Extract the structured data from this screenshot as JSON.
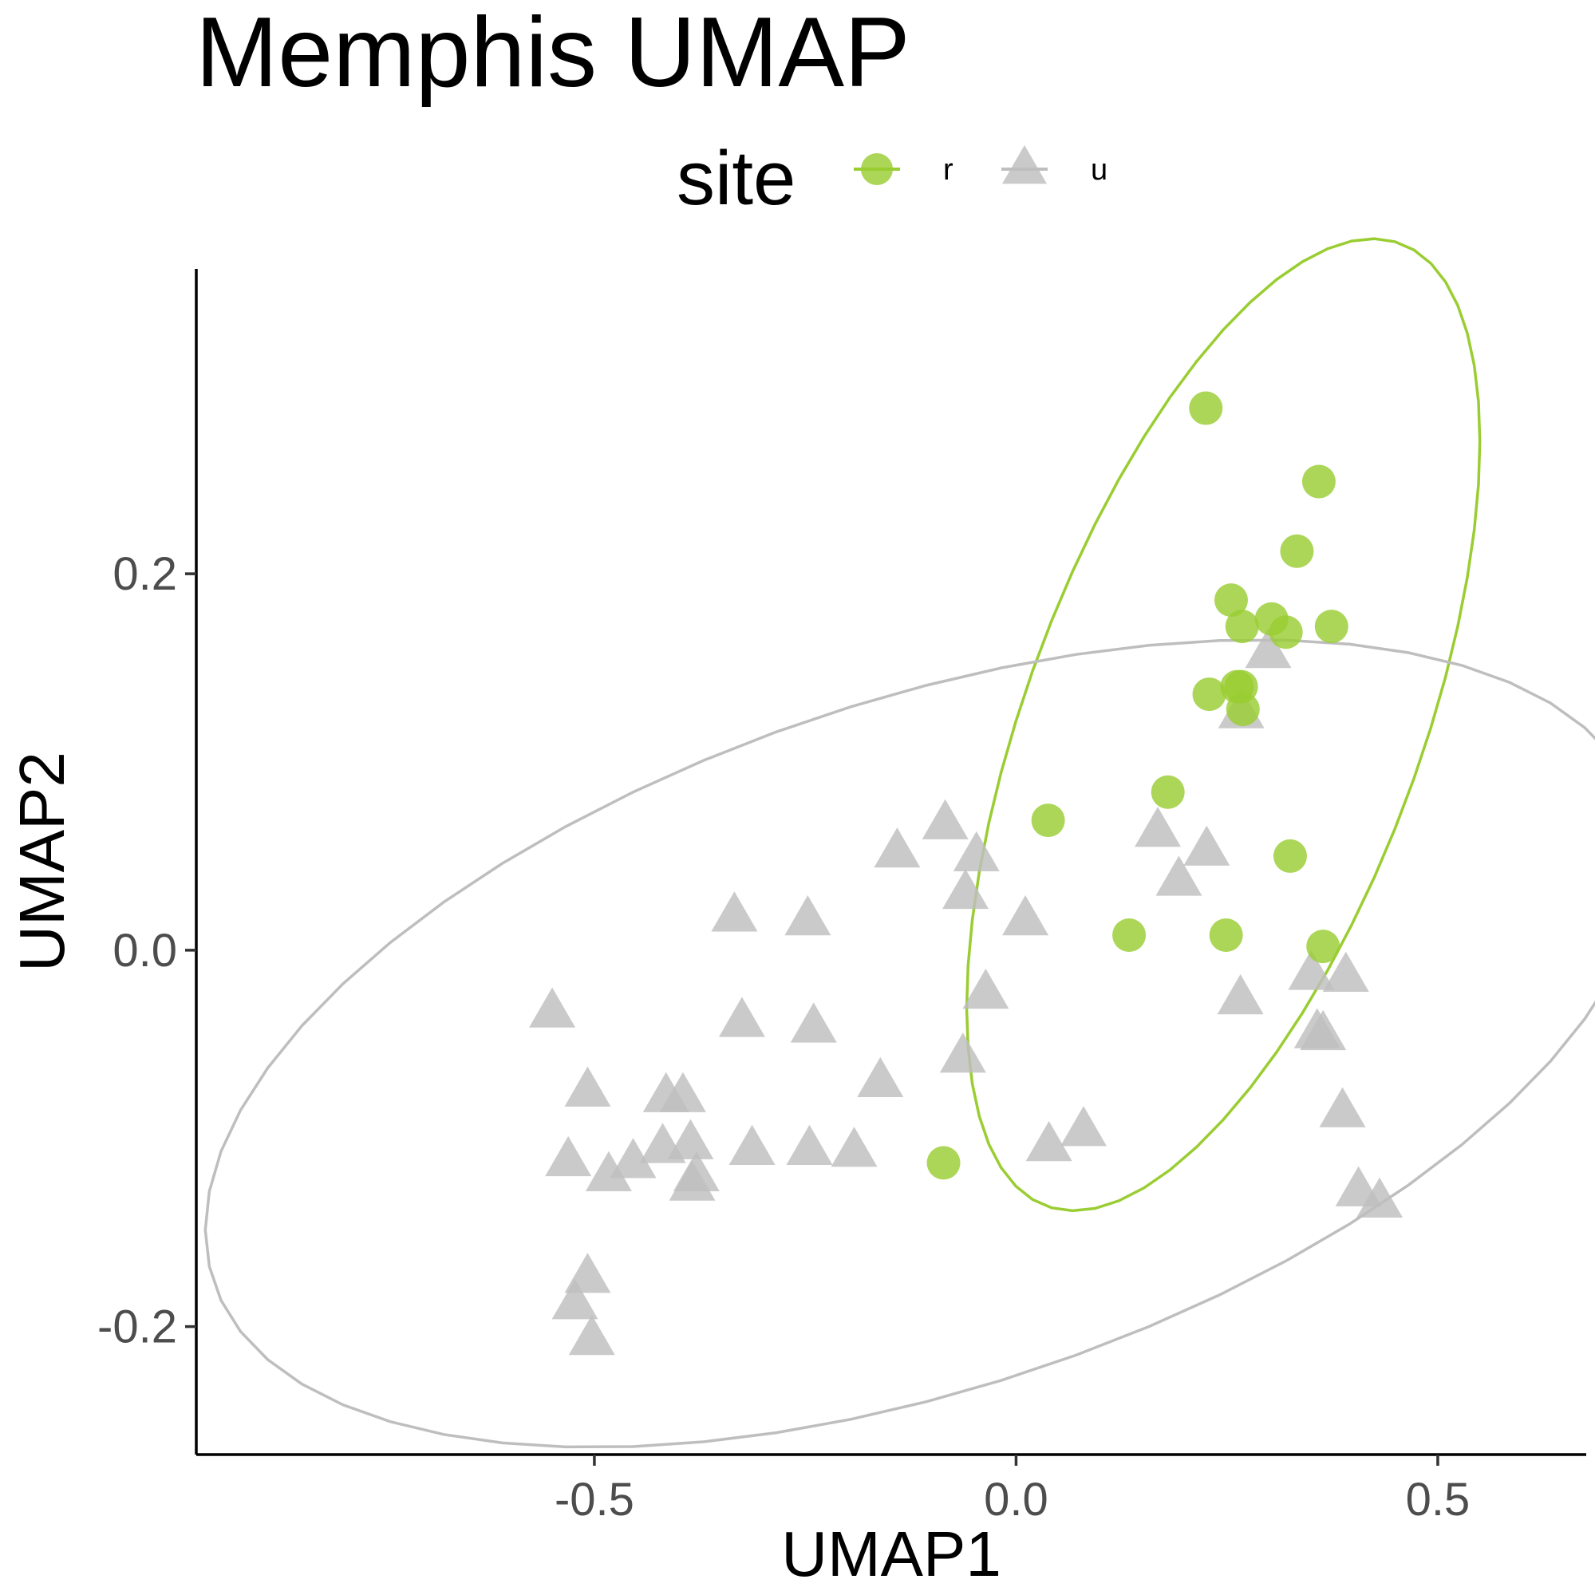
{
  "chart_data": {
    "type": "scatter",
    "title": "Memphis UMAP",
    "xlabel": "UMAP1",
    "ylabel": "UMAP2",
    "xlim": [
      -0.972,
      0.676
    ],
    "ylim": [
      -0.268,
      0.362
    ],
    "x_ticks": [
      {
        "value": -0.5,
        "label": "-0.5"
      },
      {
        "value": 0.0,
        "label": "0.0"
      },
      {
        "value": 0.5,
        "label": "0.5"
      }
    ],
    "y_ticks": [
      {
        "value": -0.2,
        "label": "-0.2"
      },
      {
        "value": 0.0,
        "label": "0.0"
      },
      {
        "value": 0.2,
        "label": "0.2"
      }
    ],
    "grid": false,
    "legend": {
      "title": "site",
      "position": "top"
    },
    "ellipses": true,
    "series": [
      {
        "name": "r",
        "marker": "circle",
        "color": "#9ACD32",
        "points": [
          [
            0.225,
            0.288
          ],
          [
            0.359,
            0.249
          ],
          [
            0.333,
            0.212
          ],
          [
            0.255,
            0.186
          ],
          [
            0.303,
            0.176
          ],
          [
            0.268,
            0.172
          ],
          [
            0.32,
            0.169
          ],
          [
            0.374,
            0.172
          ],
          [
            0.262,
            0.14
          ],
          [
            0.267,
            0.14
          ],
          [
            0.229,
            0.136
          ],
          [
            0.269,
            0.128
          ],
          [
            0.18,
            0.084
          ],
          [
            0.038,
            0.069
          ],
          [
            0.325,
            0.05
          ],
          [
            0.134,
            0.008
          ],
          [
            0.249,
            0.008
          ],
          [
            0.364,
            0.002
          ],
          [
            -0.086,
            -0.113
          ]
        ]
      },
      {
        "name": "u",
        "marker": "triangle",
        "color": "#BEBEBE",
        "points": [
          [
            0.299,
            0.158
          ],
          [
            0.267,
            0.126
          ],
          [
            -0.084,
            0.067
          ],
          [
            -0.141,
            0.052
          ],
          [
            -0.047,
            0.05
          ],
          [
            0.168,
            0.063
          ],
          [
            0.226,
            0.053
          ],
          [
            0.193,
            0.037
          ],
          [
            -0.06,
            0.03
          ],
          [
            -0.334,
            0.018
          ],
          [
            -0.247,
            0.016
          ],
          [
            0.011,
            0.016
          ],
          [
            0.35,
            -0.013
          ],
          [
            0.391,
            -0.014
          ],
          [
            0.266,
            -0.026
          ],
          [
            -0.036,
            -0.023
          ],
          [
            -0.55,
            -0.033
          ],
          [
            -0.325,
            -0.038
          ],
          [
            -0.24,
            -0.041
          ],
          [
            0.357,
            -0.044
          ],
          [
            0.364,
            -0.045
          ],
          [
            -0.063,
            -0.057
          ],
          [
            -0.161,
            -0.07
          ],
          [
            -0.508,
            -0.075
          ],
          [
            -0.415,
            -0.078
          ],
          [
            -0.395,
            -0.078
          ],
          [
            0.387,
            -0.086
          ],
          [
            0.08,
            -0.096
          ],
          [
            0.039,
            -0.104
          ],
          [
            -0.386,
            -0.103
          ],
          [
            -0.419,
            -0.105
          ],
          [
            -0.531,
            -0.112
          ],
          [
            -0.454,
            -0.113
          ],
          [
            -0.313,
            -0.106
          ],
          [
            -0.245,
            -0.106
          ],
          [
            -0.192,
            -0.107
          ],
          [
            -0.483,
            -0.12
          ],
          [
            -0.379,
            -0.12
          ],
          [
            -0.384,
            -0.125
          ],
          [
            0.406,
            -0.128
          ],
          [
            0.431,
            -0.134
          ],
          [
            -0.508,
            -0.174
          ],
          [
            -0.523,
            -0.188
          ],
          [
            -0.503,
            -0.207
          ]
        ]
      }
    ]
  }
}
